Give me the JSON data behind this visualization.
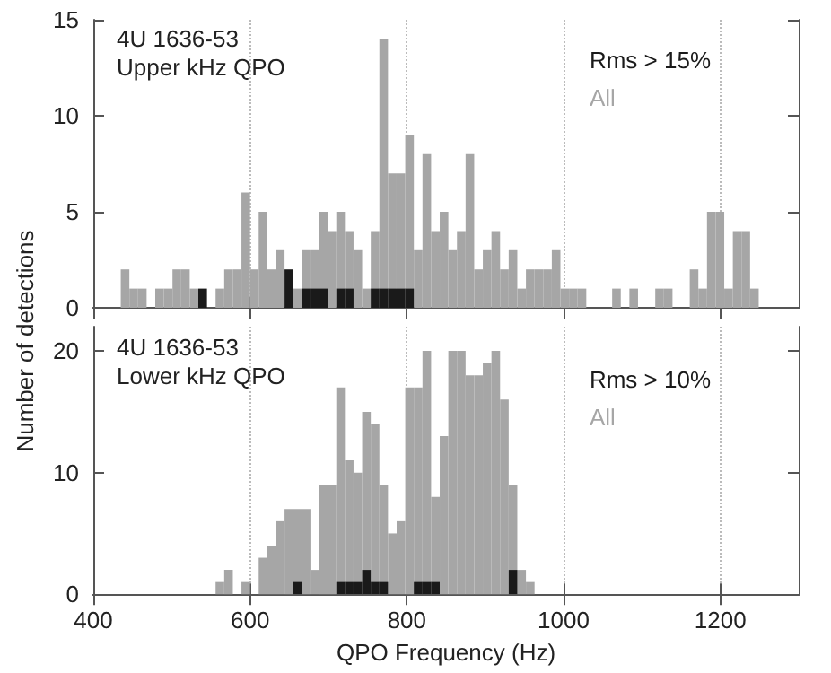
{
  "chart_data": [
    {
      "type": "histogram",
      "title": "4U 1636-53",
      "subtitle": "Upper kHz QPO",
      "bins": [
        435,
        446,
        457,
        468,
        479,
        490,
        501,
        512,
        523,
        534,
        545,
        556,
        567,
        578,
        589,
        600,
        611,
        622,
        633,
        644,
        655,
        666,
        677,
        688,
        699,
        710,
        721,
        732,
        743,
        754,
        765,
        776,
        787,
        798,
        809,
        820,
        831,
        842,
        853,
        864,
        875,
        886,
        897,
        908,
        919,
        930,
        941,
        952,
        963,
        974,
        985,
        996,
        1007,
        1018,
        1029,
        1040,
        1051,
        1062,
        1073,
        1084,
        1095,
        1106,
        1117,
        1128,
        1139,
        1150,
        1161,
        1172,
        1183,
        1194,
        1205,
        1216,
        1227,
        1238,
        1249
      ],
      "series": [
        {
          "name": "Rms > 15%",
          "color": "#1a1a1a",
          "values": [
            0,
            0,
            0,
            0,
            0,
            0,
            0,
            0,
            0,
            1,
            0,
            0,
            0,
            0,
            0,
            0,
            0,
            0,
            0,
            2,
            0,
            1,
            1,
            1,
            0,
            1,
            1,
            0,
            0,
            1,
            1,
            1,
            1,
            1,
            0,
            0,
            0,
            0,
            0,
            0,
            0,
            0,
            0,
            0,
            0,
            0,
            0,
            0,
            0,
            0,
            0,
            0,
            0,
            0,
            0,
            0,
            0,
            0,
            0,
            0,
            0,
            0,
            0,
            0,
            0,
            0,
            0,
            0,
            0,
            0,
            0,
            0,
            0,
            0
          ]
        },
        {
          "name": "All",
          "color": "#a6a6a6",
          "values": [
            2,
            1,
            1,
            0,
            1,
            1,
            2,
            2,
            1,
            null,
            0,
            1,
            2,
            2,
            6,
            2,
            5,
            2,
            3,
            null,
            1,
            3,
            3,
            5,
            4,
            5,
            4,
            3,
            1,
            4,
            14,
            7,
            7,
            9,
            3,
            8,
            4,
            5,
            3,
            4,
            8,
            2,
            3,
            4,
            2,
            3,
            1,
            2,
            2,
            2,
            3,
            1,
            1,
            1,
            0,
            0,
            0,
            1,
            0,
            1,
            0,
            0,
            1,
            1,
            0,
            0,
            2,
            1,
            5,
            5,
            1,
            4,
            4,
            1
          ]
        }
      ],
      "xlim": [
        400,
        1300
      ],
      "xticks": [
        400,
        600,
        800,
        1000,
        1200
      ],
      "ylim": [
        0,
        15
      ],
      "yticks": [
        0,
        5,
        10,
        15
      ],
      "grid": "x",
      "legend": "top right",
      "tick_labels": "y"
    },
    {
      "type": "histogram",
      "title": "4U 1636-53",
      "subtitle": "Lower kHz QPO",
      "xlabel": "QPO Frequency (Hz)",
      "ylabel": "Number of detections",
      "bins": [
        435,
        446,
        457,
        468,
        479,
        490,
        501,
        512,
        523,
        534,
        545,
        556,
        567,
        578,
        589,
        600,
        611,
        622,
        633,
        644,
        655,
        666,
        677,
        688,
        699,
        710,
        721,
        732,
        743,
        754,
        765,
        776,
        787,
        798,
        809,
        820,
        831,
        842,
        853,
        864,
        875,
        886,
        897,
        908,
        919,
        930,
        941,
        952,
        963,
        974,
        985,
        996,
        1007,
        1018,
        1029,
        1040,
        1051,
        1062,
        1073,
        1084,
        1095,
        1106,
        1117,
        1128,
        1139,
        1150,
        1161,
        1172,
        1183,
        1194,
        1205,
        1216,
        1227,
        1238,
        1249
      ],
      "series": [
        {
          "name": "Rms > 10%",
          "color": "#1a1a1a",
          "values": [
            0,
            0,
            0,
            0,
            0,
            0,
            0,
            0,
            0,
            0,
            0,
            0,
            0,
            0,
            0,
            0,
            0,
            0,
            0,
            0,
            1,
            0,
            0,
            0,
            0,
            1,
            1,
            1,
            2,
            1,
            1,
            0,
            0,
            0,
            1,
            1,
            1,
            0,
            0,
            0,
            0,
            0,
            0,
            0,
            0,
            2,
            0,
            0,
            0,
            0,
            0,
            0,
            0,
            0,
            0,
            0,
            0,
            0,
            0,
            0,
            0,
            0,
            0,
            0,
            0,
            0,
            0,
            0,
            0,
            0,
            0,
            0,
            0,
            0
          ]
        },
        {
          "name": "All",
          "color": "#a6a6a6",
          "values": [
            0,
            0,
            0,
            0,
            0,
            0,
            0,
            0,
            0,
            0,
            0,
            1,
            2,
            0,
            1,
            0,
            3,
            4,
            6,
            7,
            7,
            7,
            2,
            9,
            9,
            17,
            11,
            10,
            15,
            14,
            9,
            5,
            6,
            17,
            17,
            20,
            8,
            13,
            20,
            20,
            18,
            18,
            19,
            20,
            16,
            9,
            2,
            1,
            0,
            0,
            0,
            0,
            0,
            0,
            0,
            0,
            0,
            0,
            0,
            0,
            0,
            0,
            0,
            0,
            0,
            0,
            0,
            0,
            0,
            0,
            0,
            0,
            0,
            0
          ]
        }
      ],
      "xlim": [
        400,
        1300
      ],
      "xticks": [
        400,
        600,
        800,
        1000,
        1200
      ],
      "ylim": [
        0,
        22
      ],
      "yticks": [
        0,
        10,
        20
      ],
      "grid": "x",
      "legend": "top right"
    }
  ]
}
